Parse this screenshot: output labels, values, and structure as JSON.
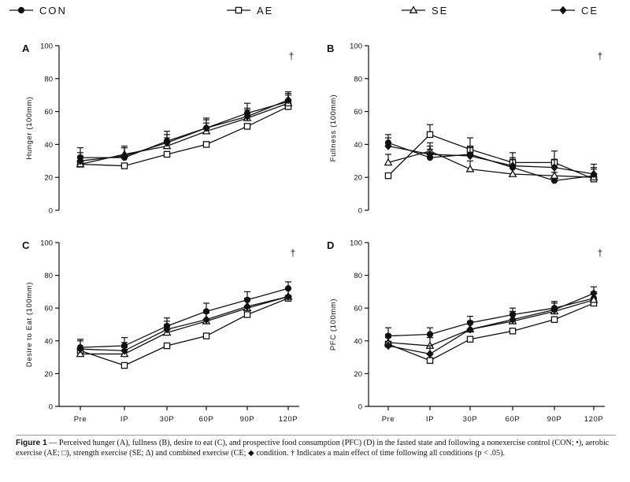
{
  "legend": {
    "items": [
      {
        "label": "CON",
        "marker": "circle"
      },
      {
        "label": "AE",
        "marker": "square"
      },
      {
        "label": "SE",
        "marker": "triangle"
      },
      {
        "label": "CE",
        "marker": "diamond"
      }
    ]
  },
  "chart_data": [
    {
      "type": "line",
      "panel": "A",
      "ylabel": "Hunger (100mm)",
      "ylim": [
        0,
        100
      ],
      "yticks": [
        0,
        20,
        40,
        60,
        80,
        100
      ],
      "categories": [
        "Pre",
        "IP",
        "30P",
        "60P",
        "90P",
        "120P"
      ],
      "show_xticks": false,
      "annotation": "†",
      "series": [
        {
          "name": "CON",
          "values": [
            32,
            32,
            42,
            50,
            59,
            66
          ],
          "errors": [
            6,
            6,
            6,
            6,
            6,
            5
          ]
        },
        {
          "name": "AE",
          "values": [
            28,
            27,
            34,
            40,
            51,
            63
          ],
          "errors": [
            0,
            0,
            0,
            0,
            0,
            0
          ]
        },
        {
          "name": "SE",
          "values": [
            28,
            34,
            39,
            48,
            56,
            65
          ],
          "errors": [
            5,
            5,
            5,
            5,
            5,
            5
          ]
        },
        {
          "name": "CE",
          "values": [
            30,
            33,
            41,
            50,
            57,
            67
          ],
          "errors": [
            5,
            5,
            5,
            5,
            5,
            5
          ]
        }
      ]
    },
    {
      "type": "line",
      "panel": "B",
      "ylabel": "Fullness (100mm)",
      "ylim": [
        0,
        100
      ],
      "yticks": [
        0,
        20,
        40,
        60,
        80,
        100
      ],
      "categories": [
        "Pre",
        "IP",
        "30P",
        "60P",
        "90P",
        "120P"
      ],
      "show_xticks": false,
      "annotation": "†",
      "series": [
        {
          "name": "CON",
          "values": [
            41,
            32,
            34,
            26,
            18,
            21
          ],
          "errors": [
            5,
            5,
            5,
            5,
            5,
            5
          ]
        },
        {
          "name": "AE",
          "values": [
            21,
            46,
            37,
            29,
            29,
            19
          ],
          "errors": [
            0,
            6,
            7,
            6,
            7,
            0
          ]
        },
        {
          "name": "SE",
          "values": [
            29,
            36,
            25,
            22,
            21,
            20
          ],
          "errors": [
            5,
            5,
            5,
            5,
            5,
            5
          ]
        },
        {
          "name": "CE",
          "values": [
            39,
            34,
            33,
            27,
            26,
            22
          ],
          "errors": [
            5,
            5,
            5,
            5,
            5,
            6
          ]
        }
      ]
    },
    {
      "type": "line",
      "panel": "C",
      "ylabel": "Desire to Eat (100mm)",
      "ylim": [
        0,
        100
      ],
      "yticks": [
        0,
        20,
        40,
        60,
        80,
        100
      ],
      "categories": [
        "Pre",
        "IP",
        "30P",
        "60P",
        "90P",
        "120P"
      ],
      "show_xticks": true,
      "annotation": "†",
      "series": [
        {
          "name": "CON",
          "values": [
            36,
            37,
            49,
            58,
            65,
            72
          ],
          "errors": [
            5,
            5,
            5,
            5,
            5,
            4
          ]
        },
        {
          "name": "AE",
          "values": [
            34,
            25,
            37,
            43,
            56,
            66
          ],
          "errors": [
            0,
            0,
            0,
            0,
            0,
            0
          ]
        },
        {
          "name": "SE",
          "values": [
            32,
            32,
            45,
            52,
            60,
            67
          ],
          "errors": [
            4,
            4,
            5,
            5,
            5,
            5
          ]
        },
        {
          "name": "CE",
          "values": [
            35,
            34,
            47,
            53,
            61,
            67
          ],
          "errors": [
            5,
            5,
            5,
            5,
            5,
            5
          ]
        }
      ]
    },
    {
      "type": "line",
      "panel": "D",
      "ylabel": "PFC (100mm)",
      "ylim": [
        0,
        100
      ],
      "yticks": [
        0,
        20,
        40,
        60,
        80,
        100
      ],
      "categories": [
        "Pre",
        "IP",
        "30P",
        "60P",
        "90P",
        "120P"
      ],
      "show_xticks": true,
      "annotation": "†",
      "series": [
        {
          "name": "CON",
          "values": [
            43,
            44,
            51,
            56,
            60,
            66
          ],
          "errors": [
            5,
            4,
            4,
            4,
            4,
            4
          ]
        },
        {
          "name": "AE",
          "values": [
            38,
            28,
            41,
            46,
            53,
            63
          ],
          "errors": [
            0,
            0,
            0,
            0,
            0,
            0
          ]
        },
        {
          "name": "SE",
          "values": [
            39,
            37,
            47,
            52,
            58,
            65
          ],
          "errors": [
            5,
            5,
            5,
            5,
            5,
            5
          ]
        },
        {
          "name": "CE",
          "values": [
            37,
            32,
            47,
            53,
            59,
            69
          ],
          "errors": [
            5,
            5,
            5,
            5,
            5,
            4
          ]
        }
      ]
    }
  ],
  "caption": {
    "label": "Figure 1",
    "text": " — Perceived hunger (A), fullness (B), desire to eat (C), and prospective food consumption (PFC) (D) in the fasted state and following a nonexercise control (CON; •), aerobic exercise (AE; □), strength exercise (SE; Δ) and combined exercise (CE; ◆ condition. † Indicates a main effect of time following all conditions (p < .05)."
  }
}
